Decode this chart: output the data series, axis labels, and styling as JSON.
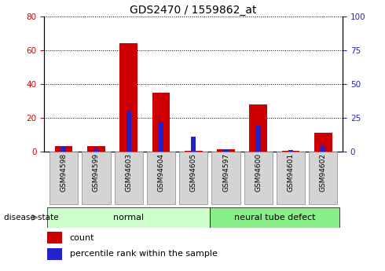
{
  "title": "GDS2470 / 1559862_at",
  "categories": [
    "GSM94598",
    "GSM94599",
    "GSM94603",
    "GSM94604",
    "GSM94605",
    "GSM94597",
    "GSM94600",
    "GSM94601",
    "GSM94602"
  ],
  "count_values": [
    3.5,
    3.2,
    64,
    35,
    0.5,
    1.5,
    28,
    0.5,
    11
  ],
  "percentile_values": [
    4,
    2,
    30,
    22,
    11,
    2,
    20,
    1.5,
    4
  ],
  "bar_color_red": "#cc0000",
  "bar_color_blue": "#2222cc",
  "red_bar_width": 0.55,
  "blue_bar_width": 0.15,
  "ylim_left": [
    0,
    80
  ],
  "ylim_right": [
    0,
    100
  ],
  "yticks_left": [
    0,
    20,
    40,
    60,
    80
  ],
  "yticks_right": [
    0,
    25,
    50,
    75,
    100
  ],
  "group_labels": [
    "normal",
    "neural tube defect"
  ],
  "group_normal_color": "#ccffcc",
  "group_ntd_color": "#88ee88",
  "disease_state_label": "disease state",
  "legend_count_label": "count",
  "legend_percentile_label": "percentile rank within the sample",
  "tick_label_color_left": "#cc0000",
  "tick_label_color_right": "#2222cc",
  "title_fontsize": 10,
  "axis_fontsize": 7.5,
  "cat_fontsize": 6.5,
  "group_fontsize": 8,
  "legend_fontsize": 8
}
